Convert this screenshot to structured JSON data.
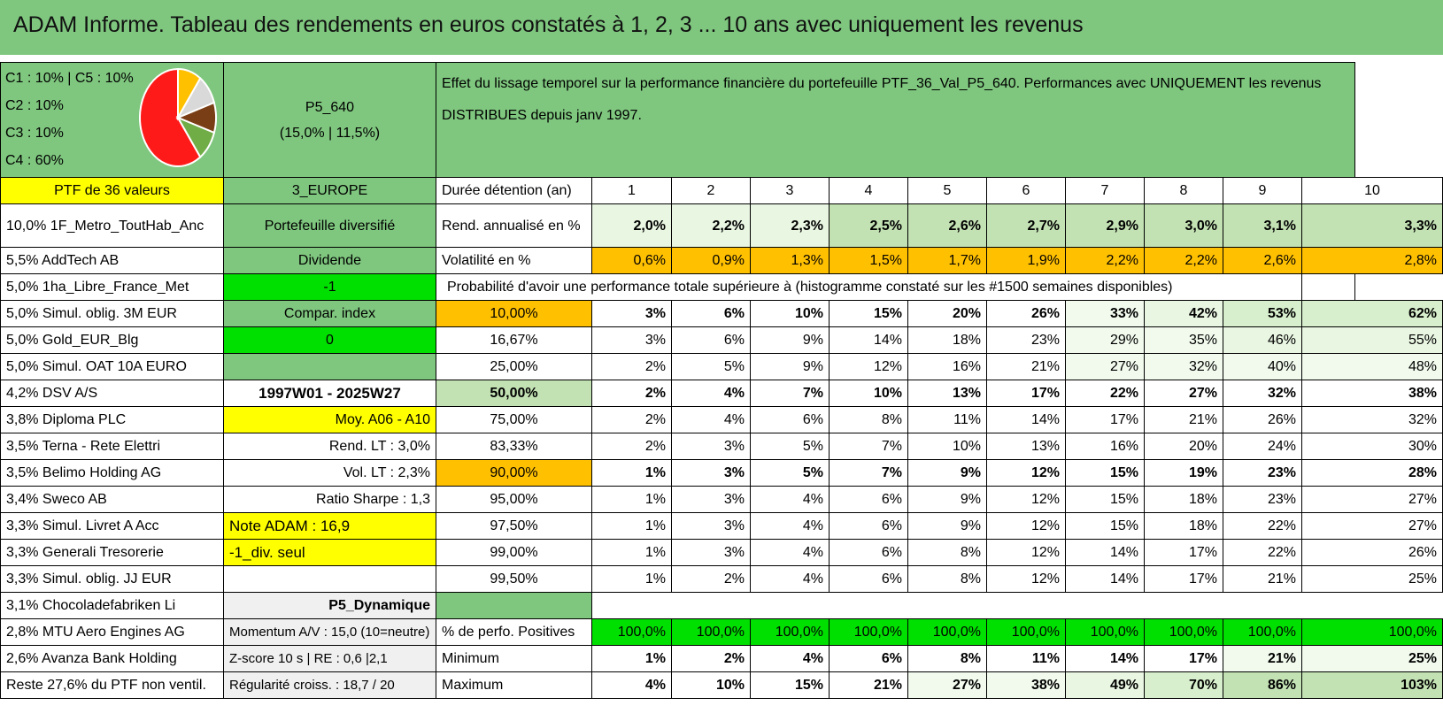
{
  "title": "ADAM Informe. Tableau des rendements en euros constatés à 1, 2, 3 ... 10 ans avec uniquement les revenus",
  "allocation": [
    "C1 : 10% | C5 : 10%",
    "C2 : 10%",
    "C3 : 10%",
    "C4 : 60%"
  ],
  "pie": {
    "slices": [
      {
        "label": "C4",
        "value": 60,
        "color": "#ff1a1a"
      },
      {
        "label": "C1",
        "value": 10,
        "color": "#ffc000"
      },
      {
        "label": "C5",
        "value": 10,
        "color": "#d9d9d9"
      },
      {
        "label": "C2",
        "value": 10,
        "color": "#7a3e16"
      },
      {
        "label": "C3",
        "value": 10,
        "color": "#70ad47"
      }
    ]
  },
  "portfolio": {
    "code": "P5_640",
    "stats": "(15,0% | 11,5%)"
  },
  "description": "Effet du lissage temporel sur la performance financière du portefeuille PTF_36_Val_P5_640. Performances avec UNIQUEMENT les revenus DISTRIBUES depuis janv 1997.",
  "holdings_header": "PTF de 36 valeurs",
  "region": "3_EUROPE",
  "holdings": [
    "10,0% 1F_Metro_ToutHab_Anc",
    "5,5% AddTech AB",
    "5,0% 1ha_Libre_France_Met",
    "5,0% Simul. oblig. 3M EUR",
    "5,0% Gold_EUR_Blg",
    "5,0% Simul. OAT 10A EURO",
    "4,2% DSV A/S",
    "3,8% Diploma PLC",
    "3,5% Terna - Rete Elettri",
    "3,5% Belimo Holding AG",
    "3,4% Sweco AB",
    "3,3% Simul. Livret A Acc",
    "3,3% Generali Tresorerie",
    "3,3% Simul. oblig. JJ EUR",
    "3,1% Chocoladefabriken Li",
    "2,8% MTU Aero Engines AG",
    "2,6% Avanza Bank Holding",
    "Reste 27,6% du PTF non ventil."
  ],
  "info": [
    "Portefeuille diversifié",
    "Dividende",
    "-1",
    "Compar. index",
    "0",
    "",
    "1997W01 - 2025W27",
    "Moy. A06 - A10",
    "Rend. LT : 3,0%",
    "Vol. LT : 2,3%",
    "Ratio Sharpe : 1,3",
    "Note ADAM : 16,9",
    "-1_div. seul",
    "",
    "P5_Dynamique",
    "Momentum A/V : 15,0 (10=neutre)",
    "Z-score 10 s | RE : 0,6 |2,1",
    "Régularité croiss. : 18,7 / 20"
  ],
  "duration_label": "Durée détention (an)",
  "years": [
    "1",
    "2",
    "3",
    "4",
    "5",
    "6",
    "7",
    "8",
    "9",
    "10"
  ],
  "return_label": "Rend. annualisé en %",
  "returns": [
    "2,0%",
    "2,2%",
    "2,3%",
    "2,5%",
    "2,6%",
    "2,7%",
    "2,9%",
    "3,0%",
    "3,1%",
    "3,3%"
  ],
  "volatility_label": "Volatilité en %",
  "volatility": [
    "0,6%",
    "0,9%",
    "1,3%",
    "1,5%",
    "1,7%",
    "1,9%",
    "2,2%",
    "2,2%",
    "2,6%",
    "2,8%"
  ],
  "prob_header": "Probabilité d'avoir une performance totale supérieure à (histogramme constaté sur les #1500 semaines disponibles)",
  "prob_rows": [
    {
      "p": "10,00%",
      "v": [
        "3%",
        "6%",
        "10%",
        "15%",
        "20%",
        "26%",
        "33%",
        "42%",
        "53%",
        "62%"
      ]
    },
    {
      "p": "16,67%",
      "v": [
        "3%",
        "6%",
        "9%",
        "14%",
        "18%",
        "23%",
        "29%",
        "35%",
        "46%",
        "55%"
      ]
    },
    {
      "p": "25,00%",
      "v": [
        "2%",
        "5%",
        "9%",
        "12%",
        "16%",
        "21%",
        "27%",
        "32%",
        "40%",
        "48%"
      ]
    },
    {
      "p": "50,00%",
      "v": [
        "2%",
        "4%",
        "7%",
        "10%",
        "13%",
        "17%",
        "22%",
        "27%",
        "32%",
        "38%"
      ]
    },
    {
      "p": "75,00%",
      "v": [
        "2%",
        "4%",
        "6%",
        "8%",
        "11%",
        "14%",
        "17%",
        "21%",
        "26%",
        "32%"
      ]
    },
    {
      "p": "83,33%",
      "v": [
        "2%",
        "3%",
        "5%",
        "7%",
        "10%",
        "13%",
        "16%",
        "20%",
        "24%",
        "30%"
      ]
    },
    {
      "p": "90,00%",
      "v": [
        "1%",
        "3%",
        "5%",
        "7%",
        "9%",
        "12%",
        "15%",
        "19%",
        "23%",
        "28%"
      ]
    },
    {
      "p": "95,00%",
      "v": [
        "1%",
        "3%",
        "4%",
        "6%",
        "9%",
        "12%",
        "15%",
        "18%",
        "23%",
        "27%"
      ]
    },
    {
      "p": "97,50%",
      "v": [
        "1%",
        "3%",
        "4%",
        "6%",
        "9%",
        "12%",
        "15%",
        "18%",
        "22%",
        "27%"
      ]
    },
    {
      "p": "99,00%",
      "v": [
        "1%",
        "3%",
        "4%",
        "6%",
        "8%",
        "12%",
        "14%",
        "17%",
        "22%",
        "26%"
      ]
    },
    {
      "p": "99,50%",
      "v": [
        "1%",
        "2%",
        "4%",
        "6%",
        "8%",
        "12%",
        "14%",
        "17%",
        "21%",
        "25%"
      ]
    }
  ],
  "positive_label": "% de perfo. Positives",
  "positive": [
    "100,0%",
    "100,0%",
    "100,0%",
    "100,0%",
    "100,0%",
    "100,0%",
    "100,0%",
    "100,0%",
    "100,0%",
    "100,0%"
  ],
  "min_label": "Minimum",
  "minimum": [
    "1%",
    "2%",
    "4%",
    "6%",
    "8%",
    "11%",
    "14%",
    "17%",
    "21%",
    "25%"
  ],
  "max_label": "Maximum",
  "maximum": [
    "4%",
    "10%",
    "15%",
    "21%",
    "27%",
    "38%",
    "49%",
    "70%",
    "86%",
    "103%"
  ]
}
